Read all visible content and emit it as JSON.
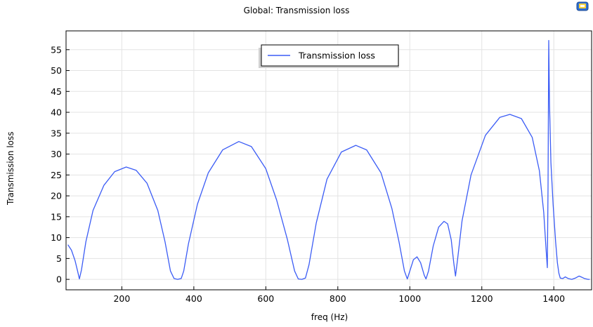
{
  "chart_data": {
    "type": "line",
    "title": "Global: Transmission loss",
    "xlabel": "freq (Hz)",
    "ylabel": "Transmission loss",
    "xlim": [
      45,
      1505
    ],
    "ylim": [
      -2.5,
      59.5
    ],
    "xticks": [
      200,
      400,
      600,
      800,
      1000,
      1200,
      1400
    ],
    "yticks": [
      0,
      5,
      10,
      15,
      20,
      25,
      30,
      35,
      40,
      45,
      50,
      55
    ],
    "grid": true,
    "legend_position": "top-center",
    "series": [
      {
        "name": "Transmission loss",
        "color": "#3b5cf5",
        "points": [
          [
            50,
            8.3
          ],
          [
            60,
            7.0
          ],
          [
            70,
            4.5
          ],
          [
            77,
            2.0
          ],
          [
            82,
            0.1
          ],
          [
            88,
            2.3
          ],
          [
            100,
            9.0
          ],
          [
            120,
            16.5
          ],
          [
            150,
            22.5
          ],
          [
            180,
            25.8
          ],
          [
            212,
            26.9
          ],
          [
            240,
            26.1
          ],
          [
            270,
            23.0
          ],
          [
            300,
            16.5
          ],
          [
            320,
            9.0
          ],
          [
            335,
            2.0
          ],
          [
            345,
            0.2
          ],
          [
            355,
            0.0
          ],
          [
            365,
            0.2
          ],
          [
            372,
            2.0
          ],
          [
            385,
            8.5
          ],
          [
            410,
            18.0
          ],
          [
            440,
            25.5
          ],
          [
            480,
            31.0
          ],
          [
            525,
            33.0
          ],
          [
            560,
            31.8
          ],
          [
            600,
            26.5
          ],
          [
            630,
            19.0
          ],
          [
            660,
            9.5
          ],
          [
            680,
            2.0
          ],
          [
            690,
            0.1
          ],
          [
            700,
            0.0
          ],
          [
            710,
            0.3
          ],
          [
            720,
            3.5
          ],
          [
            740,
            13.5
          ],
          [
            770,
            24.0
          ],
          [
            810,
            30.5
          ],
          [
            850,
            32.1
          ],
          [
            880,
            31.0
          ],
          [
            920,
            25.5
          ],
          [
            950,
            17.0
          ],
          [
            970,
            9.0
          ],
          [
            985,
            2.0
          ],
          [
            993,
            0.1
          ],
          [
            1000,
            2.0
          ],
          [
            1010,
            4.7
          ],
          [
            1020,
            5.4
          ],
          [
            1030,
            4.0
          ],
          [
            1040,
            1.0
          ],
          [
            1045,
            0.1
          ],
          [
            1052,
            2.0
          ],
          [
            1065,
            8.0
          ],
          [
            1080,
            12.5
          ],
          [
            1095,
            13.9
          ],
          [
            1105,
            13.3
          ],
          [
            1115,
            9.5
          ],
          [
            1122,
            4.0
          ],
          [
            1127,
            0.8
          ],
          [
            1133,
            5.0
          ],
          [
            1145,
            14.0
          ],
          [
            1170,
            25.0
          ],
          [
            1210,
            34.5
          ],
          [
            1250,
            38.8
          ],
          [
            1278,
            39.5
          ],
          [
            1310,
            38.5
          ],
          [
            1340,
            34.0
          ],
          [
            1360,
            26.0
          ],
          [
            1372,
            16.0
          ],
          [
            1378,
            8.0
          ],
          [
            1382,
            2.8
          ],
          [
            1384,
            22.0
          ],
          [
            1386,
            57.2
          ],
          [
            1388,
            42.0
          ],
          [
            1392,
            28.0
          ],
          [
            1398,
            18.0
          ],
          [
            1405,
            9.0
          ],
          [
            1410,
            4.0
          ],
          [
            1414,
            1.5
          ],
          [
            1418,
            0.3
          ],
          [
            1425,
            0.2
          ],
          [
            1432,
            0.6
          ],
          [
            1440,
            0.2
          ],
          [
            1450,
            0.0
          ],
          [
            1460,
            0.3
          ],
          [
            1470,
            0.8
          ],
          [
            1478,
            0.5
          ],
          [
            1485,
            0.2
          ],
          [
            1495,
            0.0
          ],
          [
            1500,
            0.0
          ]
        ]
      }
    ]
  }
}
